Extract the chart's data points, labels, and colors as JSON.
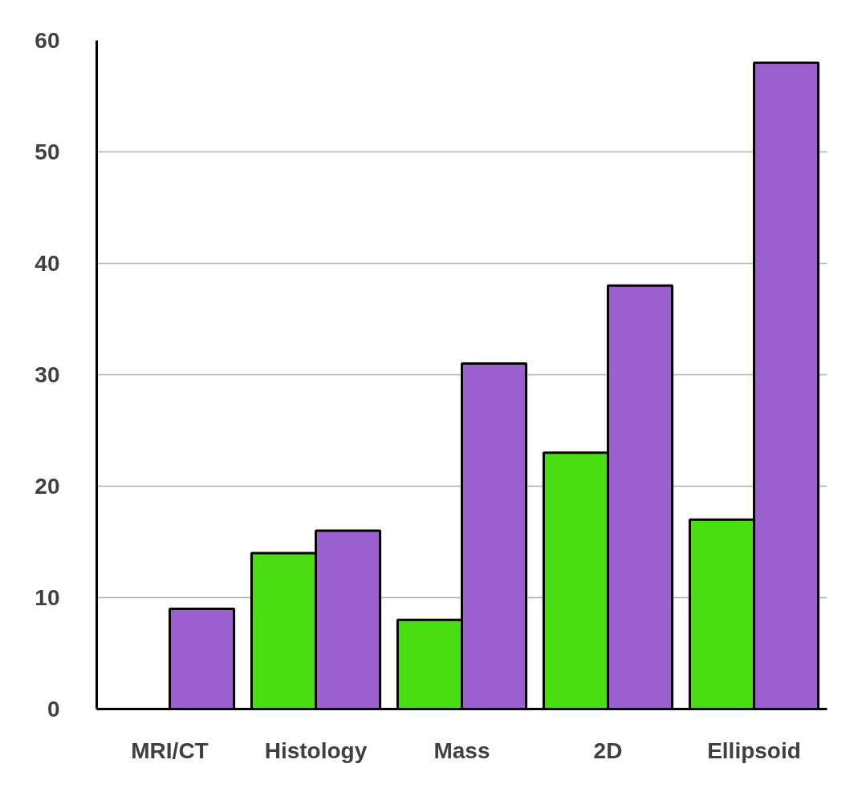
{
  "chart_data": {
    "type": "bar",
    "categories": [
      "MRI/CT",
      "Histology",
      "Mass",
      "2D",
      "Ellipsoid"
    ],
    "series": [
      {
        "color": "#4ade12",
        "values": [
          null,
          14,
          8,
          23,
          17
        ]
      },
      {
        "color": "#9b5fd0",
        "values": [
          9,
          16,
          31,
          38,
          58
        ]
      }
    ],
    "ylim": [
      0,
      60
    ],
    "yticks": [
      0,
      10,
      20,
      30,
      40,
      50,
      60
    ],
    "grid": "y"
  }
}
